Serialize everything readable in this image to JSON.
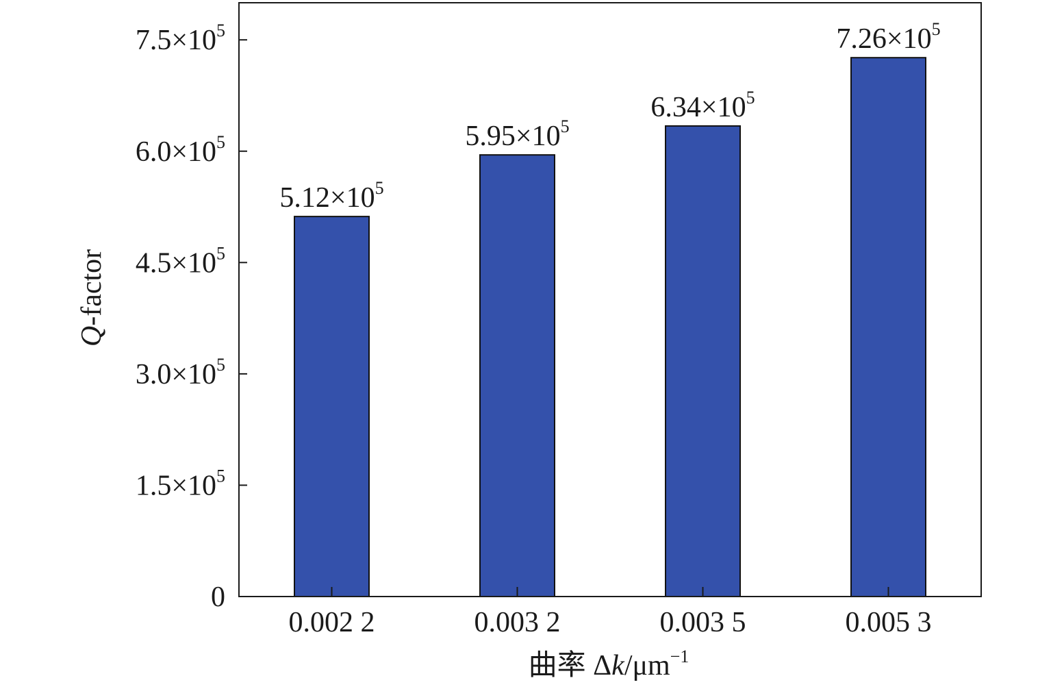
{
  "chart_data": {
    "type": "bar",
    "xlabel": {
      "prefix": "曲率 Δ",
      "var": "k",
      "unit": "/μm",
      "exp": "−1"
    },
    "ylabel": {
      "var": "Q",
      "rest": "-factor"
    },
    "categories": [
      "0.002 2",
      "0.003 2",
      "0.003 5",
      "0.005 3"
    ],
    "values": [
      512000,
      595000,
      634000,
      726000
    ],
    "data_labels": [
      {
        "mantissa": "5.12",
        "times": "×10",
        "exp": "5"
      },
      {
        "mantissa": "5.95",
        "times": "×10",
        "exp": "5"
      },
      {
        "mantissa": "6.34",
        "times": "×10",
        "exp": "5"
      },
      {
        "mantissa": "7.26",
        "times": "×10",
        "exp": "5"
      }
    ],
    "ylim": [
      0,
      800000
    ],
    "yticks": [
      {
        "value": 0,
        "mantissa": "0",
        "times": "",
        "exp": ""
      },
      {
        "value": 150000,
        "mantissa": "1.5",
        "times": "×10",
        "exp": "5"
      },
      {
        "value": 300000,
        "mantissa": "3.0",
        "times": "×10",
        "exp": "5"
      },
      {
        "value": 450000,
        "mantissa": "4.5",
        "times": "×10",
        "exp": "5"
      },
      {
        "value": 600000,
        "mantissa": "6.0",
        "times": "×10",
        "exp": "5"
      },
      {
        "value": 750000,
        "mantissa": "7.5",
        "times": "×10",
        "exp": "5"
      }
    ],
    "bar_color": "#3451ab",
    "grid": false,
    "legend": "none"
  }
}
